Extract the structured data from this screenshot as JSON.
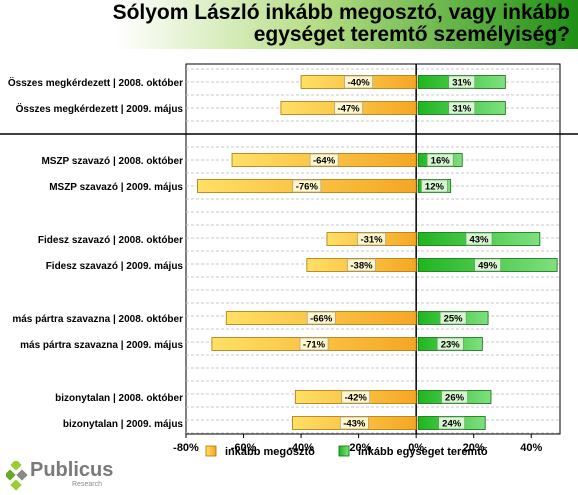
{
  "header": {
    "title": "Sólyom László inkább megosztó, vagy inkább egységet teremtő személyiség?"
  },
  "logo": {
    "name": "Publicus",
    "tagline": "Research"
  },
  "colors": {
    "negative_fill": "#f5a623",
    "negative_light": "#ffe066",
    "positive_fill": "#1fb51f",
    "positive_light": "#7fe07f",
    "label_box": "#fff6c9",
    "label_box_green": "#d6f5d0"
  },
  "chart_data": {
    "type": "bar",
    "orientation": "horizontal",
    "categories": [
      "Összes megkérdezett | 2008. október",
      "Összes megkérdezett | 2009. május",
      "MSZP szavazó | 2008. október",
      "MSZP szavazó | 2009. május",
      "Fidesz szavazó | 2008. október",
      "Fidesz szavazó | 2009. május",
      "más pártra szavazna | 2008. október",
      "más pártra szavazna | 2009. május",
      "bizonytalan | 2008. október",
      "bizonytalan | 2009. május"
    ],
    "series": [
      {
        "name": "inkább megosztó",
        "values": [
          -40,
          -47,
          -64,
          -76,
          -31,
          -38,
          -66,
          -71,
          -42,
          -43
        ],
        "labels": [
          "-40%",
          "-47%",
          "-64%",
          "-76%",
          "-31%",
          "-38%",
          "-66%",
          "-71%",
          "-42%",
          "-43%"
        ]
      },
      {
        "name": "inkább egységet teremtő",
        "values": [
          31,
          31,
          16,
          12,
          43,
          49,
          25,
          23,
          26,
          24
        ],
        "labels": [
          "31%",
          "31%",
          "16%",
          "12%",
          "43%",
          "49%",
          "25%",
          "23%",
          "26%",
          "24%"
        ]
      }
    ],
    "xlim": [
      -80,
      50
    ],
    "xticks": [
      -80,
      -60,
      -40,
      -20,
      0,
      20,
      40
    ],
    "xtick_labels": [
      "-80%",
      "-60%",
      "-40%",
      "-20%",
      "0%",
      "20%",
      "40%"
    ],
    "grid": true,
    "legend": "bottom"
  }
}
